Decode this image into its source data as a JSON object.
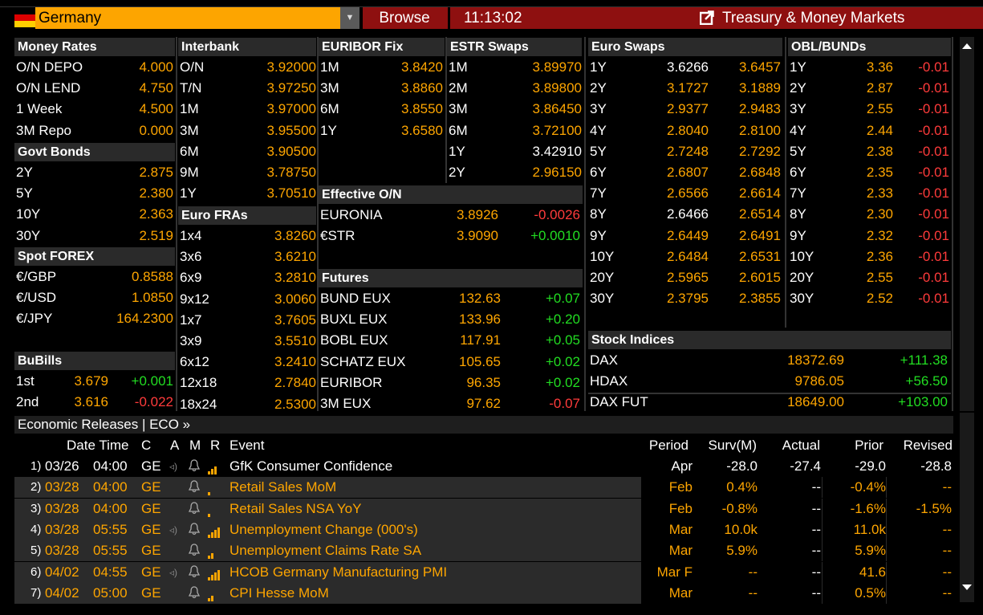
{
  "header": {
    "country": "Germany",
    "browse": "Browse",
    "time": "11:13:02",
    "title": "Treasury & Money Markets"
  },
  "money_rates": {
    "title": "Money Rates",
    "rows": [
      {
        "label": "O/N DEPO",
        "value": "4.000"
      },
      {
        "label": "O/N LEND",
        "value": "4.750"
      },
      {
        "label": "1 Week",
        "value": "4.500"
      },
      {
        "label": "3M Repo",
        "value": "0.000"
      }
    ]
  },
  "govt_bonds": {
    "title": "Govt Bonds",
    "rows": [
      {
        "label": "2Y",
        "value": "2.875"
      },
      {
        "label": "5Y",
        "value": "2.380"
      },
      {
        "label": "10Y",
        "value": "2.363"
      },
      {
        "label": "30Y",
        "value": "2.519"
      }
    ]
  },
  "spot_forex": {
    "title": "Spot FOREX",
    "rows": [
      {
        "label": "€/GBP",
        "value": "0.8588"
      },
      {
        "label": "€/USD",
        "value": "1.0850"
      },
      {
        "label": "€/JPY",
        "value": "164.2300"
      }
    ]
  },
  "bubills": {
    "title": "BuBills",
    "rows": [
      {
        "label": "1st",
        "value": "3.679",
        "change": "+0.001",
        "dir": "up"
      },
      {
        "label": "2nd",
        "value": "3.616",
        "change": "-0.022",
        "dir": "down"
      }
    ]
  },
  "interbank": {
    "title": "Interbank",
    "rows": [
      {
        "label": "O/N",
        "value": "3.92000"
      },
      {
        "label": "T/N",
        "value": "3.97250"
      },
      {
        "label": "1M",
        "value": "3.97000"
      },
      {
        "label": "3M",
        "value": "3.95500"
      },
      {
        "label": "6M",
        "value": "3.90500"
      },
      {
        "label": "9M",
        "value": "3.78750"
      },
      {
        "label": "1Y",
        "value": "3.70510"
      }
    ]
  },
  "euro_fras": {
    "title": "Euro FRAs",
    "rows": [
      {
        "label": "1x4",
        "value": "3.8260"
      },
      {
        "label": "3x6",
        "value": "3.6210"
      },
      {
        "label": "6x9",
        "value": "3.2810"
      },
      {
        "label": "9x12",
        "value": "3.0060"
      },
      {
        "label": "1x7",
        "value": "3.7605"
      },
      {
        "label": "3x9",
        "value": "3.5510"
      },
      {
        "label": "6x12",
        "value": "3.2410"
      },
      {
        "label": "12x18",
        "value": "2.7840"
      },
      {
        "label": "18x24",
        "value": "2.5300"
      }
    ]
  },
  "euribor_fix": {
    "title": "EURIBOR Fix",
    "rows": [
      {
        "label": "1M",
        "value": "3.8420"
      },
      {
        "label": "3M",
        "value": "3.8860"
      },
      {
        "label": "6M",
        "value": "3.8550"
      },
      {
        "label": "1Y",
        "value": "3.6580"
      }
    ]
  },
  "estr_swaps": {
    "title": "ESTR Swaps",
    "rows": [
      {
        "label": "1M",
        "value": "3.89970",
        "color": "o"
      },
      {
        "label": "2M",
        "value": "3.89800",
        "color": "o"
      },
      {
        "label": "3M",
        "value": "3.86450",
        "color": "o"
      },
      {
        "label": "6M",
        "value": "3.72100",
        "color": "o"
      },
      {
        "label": "1Y",
        "value": "3.42910",
        "color": "w"
      },
      {
        "label": "2Y",
        "value": "2.96150",
        "color": "o"
      }
    ]
  },
  "effective_on": {
    "title": "Effective O/N",
    "rows": [
      {
        "label": "EURONIA",
        "value": "3.8926",
        "change": "-0.0026",
        "dir": "down"
      },
      {
        "label": "€STR",
        "value": "3.9090",
        "change": "+0.0010",
        "dir": "up"
      }
    ]
  },
  "futures": {
    "title": "Futures",
    "rows": [
      {
        "label": "BUND EUX",
        "value": "132.63",
        "change": "+0.07",
        "dir": "up"
      },
      {
        "label": "BUXL EUX",
        "value": "133.96",
        "change": "+0.20",
        "dir": "up"
      },
      {
        "label": "BOBL EUX",
        "value": "117.91",
        "change": "+0.05",
        "dir": "up"
      },
      {
        "label": "SCHATZ EUX",
        "value": "105.65",
        "change": "+0.02",
        "dir": "up"
      },
      {
        "label": "EURIBOR",
        "value": "96.35",
        "change": "+0.02",
        "dir": "up"
      },
      {
        "label": "3M EUX",
        "value": "97.62",
        "change": "-0.07",
        "dir": "down"
      }
    ]
  },
  "euro_swaps": {
    "title": "Euro Swaps",
    "rows": [
      {
        "label": "1Y",
        "bid": "3.6266",
        "ask": "3.6457",
        "bidcolor": "w"
      },
      {
        "label": "2Y",
        "bid": "3.1727",
        "ask": "3.1889",
        "bidcolor": "o"
      },
      {
        "label": "3Y",
        "bid": "2.9377",
        "ask": "2.9483",
        "bidcolor": "o"
      },
      {
        "label": "4Y",
        "bid": "2.8040",
        "ask": "2.8100",
        "bidcolor": "o"
      },
      {
        "label": "5Y",
        "bid": "2.7248",
        "ask": "2.7292",
        "bidcolor": "o"
      },
      {
        "label": "6Y",
        "bid": "2.6807",
        "ask": "2.6848",
        "bidcolor": "o"
      },
      {
        "label": "7Y",
        "bid": "2.6566",
        "ask": "2.6614",
        "bidcolor": "o"
      },
      {
        "label": "8Y",
        "bid": "2.6466",
        "ask": "2.6514",
        "bidcolor": "w"
      },
      {
        "label": "9Y",
        "bid": "2.6449",
        "ask": "2.6491",
        "bidcolor": "o"
      },
      {
        "label": "10Y",
        "bid": "2.6484",
        "ask": "2.6531",
        "bidcolor": "o"
      },
      {
        "label": "20Y",
        "bid": "2.5965",
        "ask": "2.6015",
        "bidcolor": "o"
      },
      {
        "label": "30Y",
        "bid": "2.3795",
        "ask": "2.3855",
        "bidcolor": "o"
      }
    ]
  },
  "obl_bunds": {
    "title": "OBL/BUNDs",
    "rows": [
      {
        "label": "1Y",
        "value": "3.36",
        "change": "-0.01"
      },
      {
        "label": "2Y",
        "value": "2.87",
        "change": "-0.01"
      },
      {
        "label": "3Y",
        "value": "2.55",
        "change": "-0.01"
      },
      {
        "label": "4Y",
        "value": "2.44",
        "change": "-0.01"
      },
      {
        "label": "5Y",
        "value": "2.38",
        "change": "-0.01"
      },
      {
        "label": "6Y",
        "value": "2.35",
        "change": "-0.01"
      },
      {
        "label": "7Y",
        "value": "2.33",
        "change": "-0.01"
      },
      {
        "label": "8Y",
        "value": "2.30",
        "change": "-0.01"
      },
      {
        "label": "9Y",
        "value": "2.32",
        "change": "-0.01"
      },
      {
        "label": "10Y",
        "value": "2.36",
        "change": "-0.01"
      },
      {
        "label": "20Y",
        "value": "2.55",
        "change": "-0.01"
      },
      {
        "label": "30Y",
        "value": "2.52",
        "change": "-0.01"
      }
    ]
  },
  "stock_indices": {
    "title": "Stock Indices",
    "rows": [
      {
        "label": "DAX",
        "value": "18372.69",
        "change": "+111.38"
      },
      {
        "label": "HDAX",
        "value": "9786.05",
        "change": "+56.50"
      },
      {
        "label": "DAX FUT",
        "value": "18649.00",
        "change": "+103.00"
      }
    ]
  },
  "eco": {
    "title": "Economic Releases | ECO »",
    "headers": {
      "datetime": "Date Time",
      "c": "C",
      "a": "A",
      "m": "M",
      "r": "R",
      "event": "Event",
      "period": "Period",
      "surv": "Surv(M)",
      "actual": "Actual",
      "prior": "Prior",
      "revised": "Revised"
    },
    "rows": [
      {
        "num": "1)",
        "date": "03/26",
        "time": "04:00",
        "c": "GE",
        "sound": "◃)",
        "bars": 3,
        "event": "GfK Consumer Confidence",
        "period": "Apr",
        "surv": "-28.0",
        "actual": "-27.4",
        "prior": "-29.0",
        "revised": "-28.8",
        "released": true
      },
      {
        "num": "2)",
        "date": "03/28",
        "time": "04:00",
        "c": "GE",
        "sound": "",
        "bars": 1,
        "event": "Retail Sales MoM",
        "period": "Feb",
        "surv": "0.4%",
        "actual": "--",
        "prior": "-0.4%",
        "revised": "--",
        "released": false
      },
      {
        "num": "3)",
        "date": "03/28",
        "time": "04:00",
        "c": "GE",
        "sound": "",
        "bars": 1,
        "event": "Retail Sales NSA YoY",
        "period": "Feb",
        "surv": "-0.8%",
        "actual": "--",
        "prior": "-1.6%",
        "revised": "-1.5%",
        "released": false
      },
      {
        "num": "4)",
        "date": "03/28",
        "time": "05:55",
        "c": "GE",
        "sound": "◃)",
        "bars": 4,
        "event": "Unemployment Change (000's)",
        "period": "Mar",
        "surv": "10.0k",
        "actual": "--",
        "prior": "11.0k",
        "revised": "--",
        "released": false
      },
      {
        "num": "5)",
        "date": "03/28",
        "time": "05:55",
        "c": "GE",
        "sound": "",
        "bars": 2,
        "event": "Unemployment Claims Rate SA",
        "period": "Mar",
        "surv": "5.9%",
        "actual": "--",
        "prior": "5.9%",
        "revised": "--",
        "released": false
      },
      {
        "num": "6)",
        "date": "04/02",
        "time": "04:55",
        "c": "GE",
        "sound": "◃)",
        "bars": 4,
        "event": "HCOB Germany Manufacturing PMI",
        "period": "Mar F",
        "surv": "--",
        "actual": "--",
        "prior": "41.6",
        "revised": "--",
        "released": false
      },
      {
        "num": "7)",
        "date": "04/02",
        "time": "05:00",
        "c": "GE",
        "sound": "",
        "bars": 2,
        "event": "CPI Hesse MoM",
        "period": "Mar",
        "surv": "--",
        "actual": "--",
        "prior": "0.5%",
        "revised": "--",
        "released": false
      }
    ]
  },
  "colors": {
    "orange": "#fda500",
    "red": "#ff3b3b",
    "green": "#22dd22",
    "titlebar": "#8e1010"
  }
}
